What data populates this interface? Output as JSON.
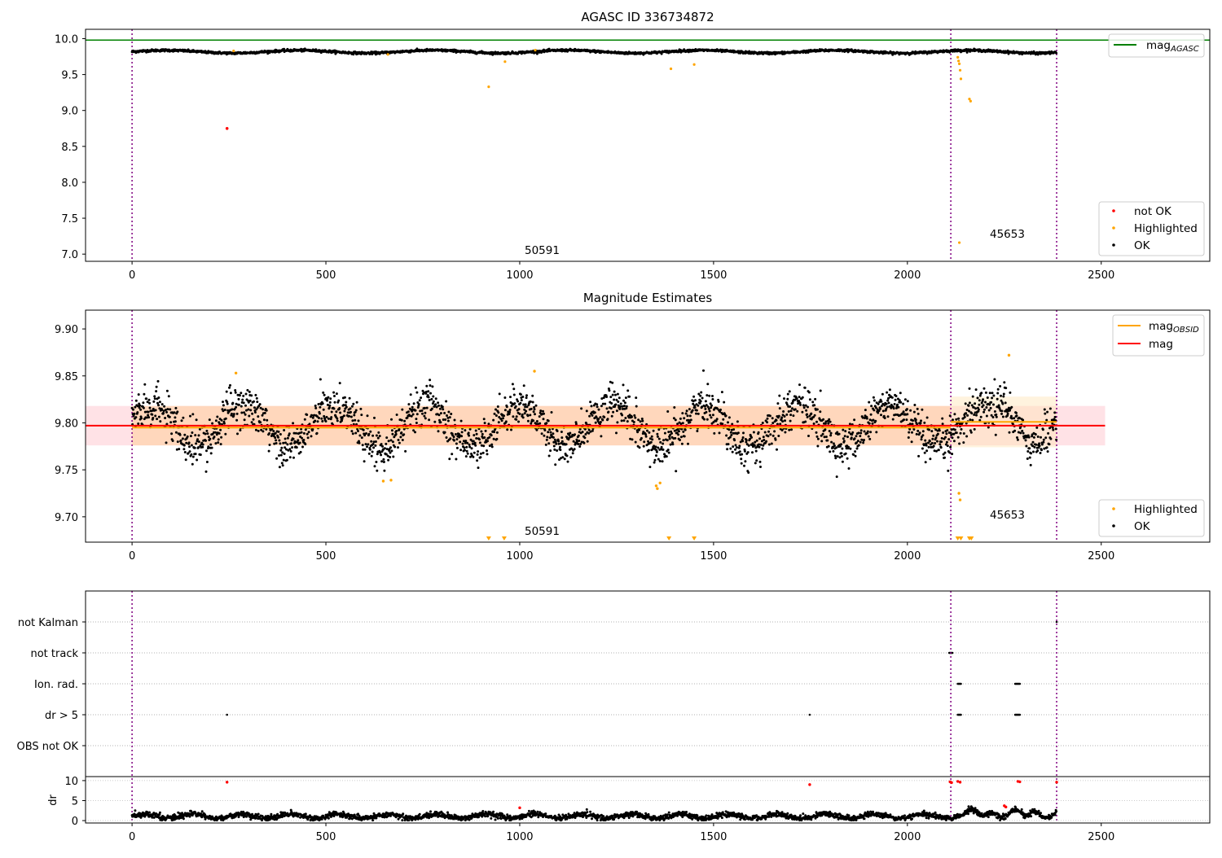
{
  "figure": {
    "panels": [
      {
        "id": "agasc",
        "title": "AGASC ID 336734872",
        "xlim": [
          -120,
          2780
        ],
        "ylim": [
          6.9,
          10.13
        ],
        "xticks": [
          "0",
          "500",
          "1000",
          "1500",
          "2000",
          "2500"
        ],
        "xtick_values": [
          0,
          500,
          1000,
          1500,
          2000,
          2500
        ],
        "yticks": [
          "7.0",
          "7.5",
          "8.0",
          "8.5",
          "9.0",
          "9.5",
          "10.0"
        ],
        "ytick_values": [
          7.0,
          7.5,
          8.0,
          8.5,
          9.0,
          9.5,
          10.0
        ]
      },
      {
        "id": "estimates",
        "title": "Magnitude Estimates",
        "xlim": [
          -120,
          2780
        ],
        "ylim": [
          9.673,
          9.92
        ],
        "xticks": [
          "0",
          "500",
          "1000",
          "1500",
          "2000",
          "2500"
        ],
        "xtick_values": [
          0,
          500,
          1000,
          1500,
          2000,
          2500
        ],
        "yticks": [
          "9.70",
          "9.75",
          "9.80",
          "9.85",
          "9.90"
        ],
        "ytick_values": [
          9.7,
          9.75,
          9.8,
          9.85,
          9.9
        ]
      },
      {
        "id": "flags",
        "categories": [
          "not Kalman",
          "not track",
          "Ion. rad.",
          "dr > 5",
          "OBS not OK"
        ],
        "xlim": [
          -120,
          2780
        ]
      },
      {
        "id": "dr",
        "ylabel": "dr",
        "xlim": [
          -120,
          2780
        ],
        "ylim": [
          -0.6,
          11
        ],
        "xticks": [
          "0",
          "500",
          "1000",
          "1500",
          "2000",
          "2500"
        ],
        "xtick_values": [
          0,
          500,
          1000,
          1500,
          2000,
          2500
        ],
        "yticks": [
          "0",
          "5",
          "10"
        ],
        "ytick_values": [
          0,
          5,
          10
        ]
      }
    ],
    "legend_top": [
      {
        "label": "mag",
        "sub": "AGASC",
        "color": "#008000",
        "kind": "line"
      }
    ],
    "legend_top_status": [
      {
        "label": "not OK",
        "color": "#ff0000",
        "kind": "dot"
      },
      {
        "label": "Highlighted",
        "color": "#ffa500",
        "kind": "dot"
      },
      {
        "label": "OK",
        "color": "#000000",
        "kind": "dot"
      }
    ],
    "legend_mid_lines": [
      {
        "label": "mag",
        "sub": "OBSID",
        "color": "#ffa500",
        "kind": "line"
      },
      {
        "label": "mag",
        "sub": "",
        "color": "#ff0000",
        "kind": "line"
      }
    ],
    "legend_mid_status": [
      {
        "label": "Highlighted",
        "color": "#ffa500",
        "kind": "dot"
      },
      {
        "label": "OK",
        "color": "#000000",
        "kind": "dot"
      }
    ],
    "annotations": {
      "obsid_a": "50591",
      "obsid_b": "45653"
    }
  },
  "chart_data": {
    "type": "scatter",
    "x_range": [
      0,
      2385
    ],
    "obsid_boundaries": [
      0,
      2112,
      2385
    ],
    "obsids": [
      {
        "label": "50591",
        "x_label_at": 1005
      },
      {
        "label": "45653",
        "x_label_at": 2210
      }
    ],
    "mag_agasc": 9.98,
    "mag": 9.797,
    "mag_band": [
      9.776,
      9.818
    ],
    "mag_obsid_a": 9.795,
    "mag_obsid_a_band": [
      9.776,
      9.818
    ],
    "mag_obsid_b": 9.801,
    "mag_obsid_b_band": [
      9.774,
      9.828
    ],
    "agasc_not_ok": [
      [
        245,
        8.75
      ]
    ],
    "agasc_highlighted": [
      [
        262,
        9.83
      ],
      [
        660,
        9.78
      ],
      [
        920,
        9.33
      ],
      [
        962,
        9.68
      ],
      [
        1040,
        9.84
      ],
      [
        1390,
        9.58
      ],
      [
        1450,
        9.64
      ],
      [
        2130,
        9.74
      ],
      [
        2132,
        9.69
      ],
      [
        2134,
        9.65
      ],
      [
        2136,
        9.56
      ],
      [
        2138,
        9.44
      ],
      [
        2160,
        9.16
      ],
      [
        2163,
        9.13
      ],
      [
        2134,
        7.16
      ]
    ],
    "est_highlighted": [
      [
        268,
        9.853
      ],
      [
        648,
        9.738
      ],
      [
        668,
        9.739
      ],
      [
        1038,
        9.855
      ],
      [
        1352,
        9.733
      ],
      [
        1355,
        9.73
      ],
      [
        1362,
        9.736
      ],
      [
        2133,
        9.725
      ],
      [
        2136,
        9.718
      ],
      [
        2262,
        9.872
      ]
    ],
    "est_offscale_highlighted": [
      920,
      960,
      1385,
      1450,
      2130,
      2138,
      2160,
      2165
    ],
    "flags": {
      "not Kalman": [
        2385
      ],
      "not track": [
        2108,
        2110,
        2112,
        2114,
        2116
      ],
      "Ion. rad.": [
        2130,
        2132,
        2134,
        2136,
        2138,
        2278,
        2280,
        2282,
        2284,
        2286,
        2288,
        2290
      ],
      "dr > 5": [
        245,
        1748,
        2130,
        2132,
        2134,
        2136,
        2138,
        2278,
        2280,
        2282,
        2284,
        2286,
        2288,
        2290
      ],
      "OBS not OK": []
    },
    "dr_high": [
      [
        245,
        9.6
      ],
      [
        1748,
        9.0
      ],
      [
        2110,
        9.7
      ],
      [
        2114,
        9.5
      ],
      [
        2130,
        9.8
      ],
      [
        2136,
        9.6
      ],
      [
        2285,
        9.8
      ],
      [
        2290,
        9.7
      ],
      [
        2385,
        9.6
      ],
      [
        1000,
        3.2
      ],
      [
        2250,
        3.7
      ],
      [
        2254,
        3.4
      ]
    ]
  }
}
